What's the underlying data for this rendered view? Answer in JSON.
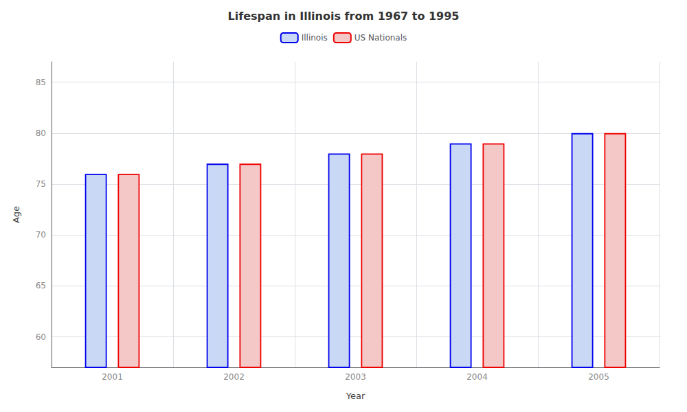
{
  "chart_data": {
    "type": "bar",
    "title": "Lifespan in Illinois from 1967 to 1995",
    "xlabel": "Year",
    "ylabel": "Age",
    "categories": [
      "2001",
      "2002",
      "2003",
      "2004",
      "2005"
    ],
    "series": [
      {
        "name": "Illinois",
        "color": "#c8d8f5",
        "values": [
          76,
          77,
          78,
          79,
          80
        ]
      },
      {
        "name": "US Nationals",
        "color": "#f5c8c8",
        "values": [
          76,
          77,
          78,
          79,
          80
        ]
      }
    ],
    "ylim": [
      57,
      87
    ],
    "yticks": [
      60,
      65,
      70,
      75,
      80,
      85
    ],
    "grid": true,
    "legend": "top"
  }
}
